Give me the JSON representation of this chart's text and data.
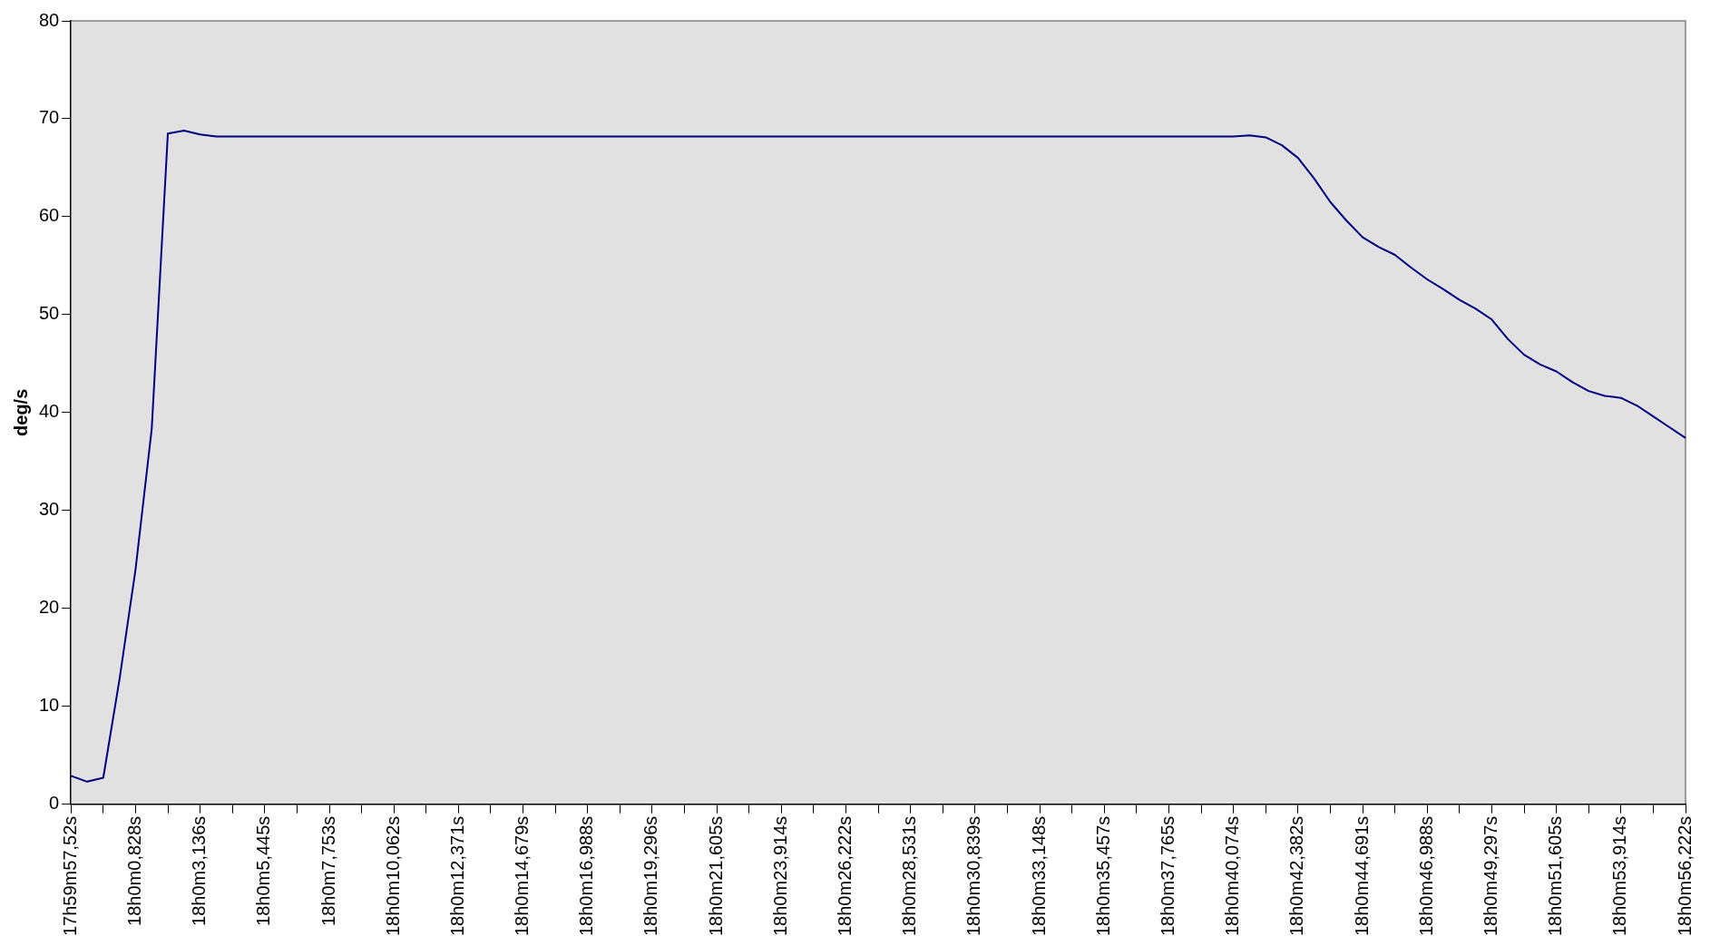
{
  "chart_data": {
    "type": "line",
    "ylabel": "deg/s",
    "categories": [
      "17h59m57,52s",
      null,
      null,
      null,
      "18h0m0,828s",
      null,
      null,
      null,
      "18h0m3,136s",
      null,
      null,
      null,
      "18h0m5,445s",
      null,
      null,
      null,
      "18h0m7,753s",
      null,
      null,
      null,
      "18h0m10,062s",
      null,
      null,
      null,
      "18h0m12,371s",
      null,
      null,
      null,
      "18h0m14,679s",
      null,
      null,
      null,
      "18h0m16,988s",
      null,
      null,
      null,
      "18h0m19,296s",
      null,
      null,
      null,
      "18h0m21,605s",
      null,
      null,
      null,
      "18h0m23,914s",
      null,
      null,
      null,
      "18h0m26,222s",
      null,
      null,
      null,
      "18h0m28,531s",
      null,
      null,
      null,
      "18h0m30,839s",
      null,
      null,
      null,
      "18h0m33,148s",
      null,
      null,
      null,
      "18h0m35,457s",
      null,
      null,
      null,
      "18h0m37,765s",
      null,
      null,
      null,
      "18h0m40,074s",
      null,
      null,
      null,
      "18h0m42,382s",
      null,
      null,
      null,
      "18h0m44,691s",
      null,
      null,
      null,
      "18h0m46,988s",
      null,
      null,
      null,
      "18h0m49,297s",
      null,
      null,
      null,
      "18h0m51,605s",
      null,
      null,
      null,
      "18h0m53,914s",
      null,
      null,
      null,
      "18h0m56,222s"
    ],
    "series": [
      {
        "color": "#000080",
        "values": [
          2.9,
          2.3,
          2.7,
          12.7,
          24,
          38.3,
          68.5,
          68.8,
          68.4,
          68.2,
          68.2,
          68.2,
          68.2,
          68.2,
          68.2,
          68.2,
          68.2,
          68.2,
          68.2,
          68.2,
          68.2,
          68.2,
          68.2,
          68.2,
          68.2,
          68.2,
          68.2,
          68.2,
          68.2,
          68.2,
          68.2,
          68.2,
          68.2,
          68.2,
          68.2,
          68.2,
          68.2,
          68.2,
          68.2,
          68.2,
          68.2,
          68.2,
          68.2,
          68.2,
          68.2,
          68.2,
          68.2,
          68.2,
          68.2,
          68.2,
          68.2,
          68.2,
          68.2,
          68.2,
          68.2,
          68.2,
          68.2,
          68.2,
          68.2,
          68.2,
          68.2,
          68.2,
          68.2,
          68.2,
          68.2,
          68.2,
          68.2,
          68.2,
          68.2,
          68.2,
          68.2,
          68.2,
          68.2,
          68.3,
          68.1,
          67.3,
          66.0,
          63.9,
          61.5,
          59.6,
          57.9,
          56.9,
          56.1,
          54.8,
          53.6,
          52.6,
          51.5,
          50.6,
          49.5,
          47.5,
          45.9,
          44.9,
          44.2,
          43.1,
          42.2,
          41.7,
          41.5,
          40.7,
          39.6,
          38.5,
          37.4
        ]
      }
    ],
    "ylim": [
      0,
      80
    ],
    "yticks": [
      0,
      10,
      20,
      30,
      40,
      50,
      60,
      70,
      80
    ],
    "grid": false,
    "legend": false,
    "marker": "none",
    "line_style": "solid"
  }
}
